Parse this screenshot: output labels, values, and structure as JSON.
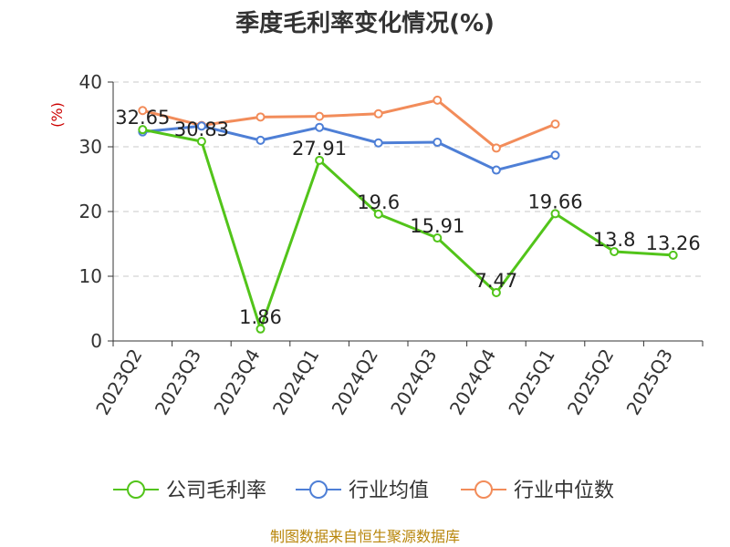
{
  "chart_data": {
    "type": "line",
    "title": "季度毛利率变化情况(%)",
    "ylabel": "(%)",
    "xlabel": "",
    "ylim": [
      0,
      40
    ],
    "yticks": [
      0,
      10,
      20,
      30,
      40
    ],
    "grid": true,
    "legend_position": "bottom",
    "categories": [
      "2023Q2",
      "2023Q3",
      "2023Q4",
      "2024Q1",
      "2024Q2",
      "2024Q3",
      "2024Q4",
      "2025Q1",
      "2025Q2",
      "2025Q3"
    ],
    "series": [
      {
        "name": "公司毛利率",
        "color": "#52c41a",
        "values": [
          32.65,
          30.83,
          1.86,
          27.91,
          19.6,
          15.91,
          7.47,
          19.66,
          13.8,
          13.26
        ],
        "labels": [
          "32.65",
          "30.83",
          "1.86",
          "27.91",
          "19.6",
          "15.91",
          "7.47",
          "19.66",
          "13.8",
          "13.26"
        ]
      },
      {
        "name": "行业均值",
        "color": "#4e7fd6",
        "values": [
          32.3,
          33.2,
          31.0,
          33.0,
          30.6,
          30.7,
          26.4,
          28.7,
          null,
          null
        ]
      },
      {
        "name": "行业中位数",
        "color": "#f28c5a",
        "values": [
          35.6,
          33.3,
          34.6,
          34.7,
          35.1,
          37.2,
          29.8,
          33.5,
          null,
          null
        ]
      }
    ]
  },
  "footer": {
    "source": "制图数据来自恒生聚源数据库"
  }
}
